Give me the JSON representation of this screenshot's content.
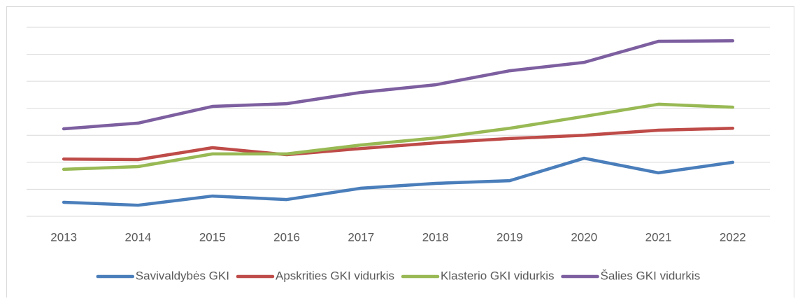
{
  "chart_data": {
    "type": "line",
    "categories": [
      "2013",
      "2014",
      "2015",
      "2016",
      "2017",
      "2018",
      "2019",
      "2020",
      "2021",
      "2022"
    ],
    "series": [
      {
        "name": "Savivaldybės GKI",
        "color": "#4a7ebb",
        "values": [
          0.52,
          0.41,
          0.75,
          0.62,
          1.04,
          1.22,
          1.32,
          2.15,
          1.61,
          2.0
        ]
      },
      {
        "name": "Apskrities GKI vidurkis",
        "color": "#be4b48",
        "values": [
          2.12,
          2.1,
          2.54,
          2.28,
          2.51,
          2.72,
          2.88,
          3.0,
          3.19,
          3.26
        ]
      },
      {
        "name": "Klasterio GKI vidurkis",
        "color": "#98b954",
        "values": [
          1.74,
          1.84,
          2.31,
          2.31,
          2.64,
          2.9,
          3.26,
          3.7,
          4.15,
          4.04
        ]
      },
      {
        "name": "Šalies GKI vidurkis",
        "color": "#7d5fa0",
        "values": [
          3.24,
          3.45,
          4.07,
          4.17,
          4.59,
          4.87,
          5.39,
          5.7,
          6.48,
          6.5
        ]
      }
    ],
    "ylim": [
      0,
      7
    ],
    "yticks": [
      0,
      1,
      2,
      3,
      4,
      5,
      6,
      7
    ],
    "grid": true,
    "legend": "bottom"
  }
}
